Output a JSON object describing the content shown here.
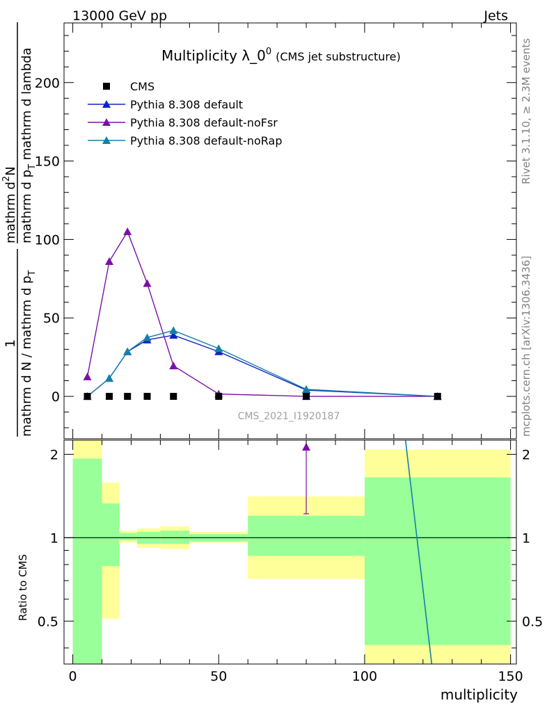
{
  "header": {
    "left": "13000 GeV pp",
    "right": "Jets"
  },
  "side": {
    "rivet": "Rivet 3.1.10, ≥ 2.3M events",
    "mcplots": "mcplots.cern.ch [arXiv:1306.3436]"
  },
  "chart_data": {
    "type": "line",
    "title_main": "Multiplicity λ_0",
    "title_sup": "0",
    "title_sub": "(CMS jet substructure)",
    "watermark": "CMS_2021_I1920187",
    "xlabel": "multiplicity",
    "ylabel_top_num": "1",
    "ylabel_top_den": "mathrm d N / mathrm d p",
    "ylabel_top_den_sub": "T",
    "ylabel_top_num2": "mathrm d",
    "ylabel_top_num2_sup": "2",
    "ylabel_top_num2_rest": "N",
    "ylabel_top_den2": "mathrm d p",
    "ylabel_top_den2_sub": "T",
    "ylabel_top_den2_rest": " mathrm d lambda",
    "ylabel_ratio": "Ratio to CMS",
    "xlim": [
      -3,
      152
    ],
    "ylim_main": [
      -27,
      238
    ],
    "ylim_ratio": [
      0.35,
      2.25
    ],
    "xticks": [
      0,
      50,
      100,
      150
    ],
    "yticks_main": [
      0,
      50,
      100,
      150,
      200
    ],
    "yticks_ratio": [
      0.5,
      1,
      2
    ],
    "legend": [
      {
        "label": "CMS",
        "marker": "square",
        "color": "#000000"
      },
      {
        "label": "Pythia 8.308 default",
        "marker": "triangle",
        "color": "#1023c0"
      },
      {
        "label": "Pythia 8.308 default-noFsr",
        "marker": "triangle",
        "color": "#7a10a8"
      },
      {
        "label": "Pythia 8.308 default-noRap",
        "marker": "triangle",
        "color": "#1480a8"
      }
    ],
    "cms": {
      "x": [
        5,
        12.5,
        18.75,
        25.5,
        34.5,
        50,
        80,
        125
      ],
      "y": [
        0,
        0,
        0,
        0,
        0,
        0,
        0,
        0
      ]
    },
    "series": [
      {
        "name": "Pythia 8.308 default",
        "color": "#1023c0",
        "x": [
          5,
          12.5,
          18.75,
          25.5,
          34.5,
          50,
          80,
          125
        ],
        "y": [
          0,
          11.5,
          28.5,
          36,
          39,
          28.5,
          4,
          0
        ]
      },
      {
        "name": "Pythia 8.308 default-noFsr",
        "color": "#7a10a8",
        "x": [
          5,
          12.5,
          18.75,
          25.5,
          34.5,
          50,
          80,
          125
        ],
        "y": [
          12.5,
          86,
          105,
          72,
          19.5,
          1.5,
          0,
          0
        ]
      },
      {
        "name": "Pythia 8.308 default-noRap",
        "color": "#1480a8",
        "x": [
          5,
          12.5,
          18.75,
          25.5,
          34.5,
          50,
          80,
          125
        ],
        "y": [
          0,
          11.5,
          28.5,
          37.5,
          42,
          30.5,
          4.5,
          0
        ]
      }
    ],
    "ratio_bands": [
      {
        "x0": 0,
        "x1": 10,
        "yellow": [
          0.35,
          2.25
        ],
        "green": [
          0.35,
          1.93
        ]
      },
      {
        "x0": 10,
        "x1": 16,
        "yellow": [
          0.51,
          1.58
        ],
        "green": [
          0.79,
          1.33
        ]
      },
      {
        "x0": 16,
        "x1": 22,
        "yellow": [
          0.96,
          1.06
        ],
        "green": [
          0.98,
          1.04
        ]
      },
      {
        "x0": 22,
        "x1": 30,
        "yellow": [
          0.92,
          1.08
        ],
        "green": [
          0.95,
          1.05
        ]
      },
      {
        "x0": 30,
        "x1": 40,
        "yellow": [
          0.91,
          1.1
        ],
        "green": [
          0.95,
          1.06
        ]
      },
      {
        "x0": 40,
        "x1": 60,
        "yellow": [
          0.96,
          1.05
        ],
        "green": [
          0.97,
          1.03
        ]
      },
      {
        "x0": 60,
        "x1": 100,
        "yellow": [
          0.71,
          1.41
        ],
        "green": [
          0.86,
          1.2
        ]
      },
      {
        "x0": 100,
        "x1": 150,
        "yellow": [
          0.35,
          2.08
        ],
        "green": [
          0.41,
          1.65
        ]
      }
    ],
    "ratio_marker": {
      "series": "Pythia 8.308 default-noFsr",
      "x": 80,
      "y": 2.25,
      "err_low": 1.22
    },
    "ratio_line": {
      "series": "Pythia 8.308 default-noRap",
      "x": [
        114,
        123
      ],
      "y": [
        2.25,
        0.35
      ]
    }
  }
}
